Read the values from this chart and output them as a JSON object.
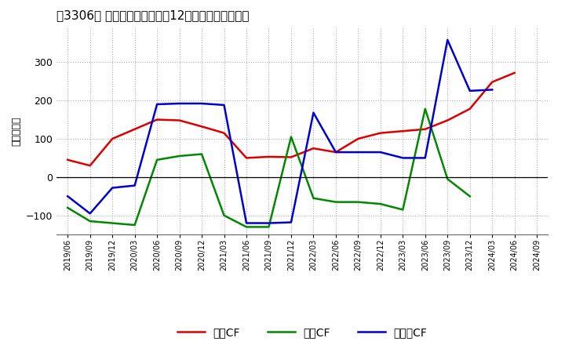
{
  "title": "［3306］ キャッシュフローの12か月移動合計の推移",
  "ylabel": "（百万円）",
  "background_color": "#ffffff",
  "plot_bg_color": "#ffffff",
  "grid_color": "#aaaaaa",
  "ylim": [
    -150,
    390
  ],
  "yticks": [
    -100,
    0,
    100,
    200,
    300
  ],
  "dates": [
    "2019/06",
    "2019/09",
    "2019/12",
    "2020/03",
    "2020/06",
    "2020/09",
    "2020/12",
    "2021/03",
    "2021/06",
    "2021/09",
    "2021/12",
    "2022/03",
    "2022/06",
    "2022/09",
    "2022/12",
    "2023/03",
    "2023/06",
    "2023/09",
    "2023/12",
    "2024/03",
    "2024/06",
    "2024/09"
  ],
  "eigyo_cf": [
    45,
    30,
    100,
    125,
    150,
    148,
    132,
    115,
    50,
    53,
    52,
    75,
    65,
    100,
    115,
    120,
    125,
    148,
    178,
    248,
    272,
    null
  ],
  "toshi_cf": [
    -80,
    -115,
    -120,
    -125,
    45,
    55,
    60,
    -100,
    -130,
    -130,
    105,
    -55,
    -65,
    -65,
    -70,
    -85,
    178,
    -5,
    -50,
    null,
    null,
    null
  ],
  "free_cf": [
    -50,
    -95,
    -28,
    -22,
    190,
    192,
    192,
    188,
    -120,
    -120,
    -118,
    168,
    65,
    65,
    65,
    50,
    50,
    358,
    225,
    228,
    null,
    null
  ],
  "eigyo_color": "#dd0000",
  "toshi_color": "#008800",
  "free_color": "#0000cc",
  "legend_labels": [
    "営業CF",
    "投資CF",
    "フリーCF"
  ],
  "line_width": 1.8
}
